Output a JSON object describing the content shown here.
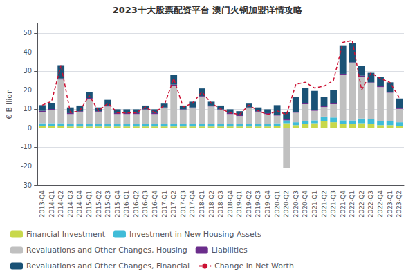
{
  "chart_data": {
    "type": "bar",
    "stacked": true,
    "ylabel": "€ Billion",
    "annotations": [
      "2023十大股票配资平台 澳门火锅加盟详情攻略"
    ],
    "categories": [
      "2013-Q4",
      "2014-Q1",
      "2014-Q2",
      "2014-Q3",
      "2014-Q4",
      "2015-Q1",
      "2015-Q2",
      "2015-Q3",
      "2015-Q4",
      "2016-Q1",
      "2016-Q2",
      "2016-Q3",
      "2016-Q4",
      "2017-Q1",
      "2017-Q2",
      "2017-Q3",
      "2017-Q4",
      "2018-Q1",
      "2018-Q2",
      "2018-Q3",
      "2018-Q4",
      "2019-Q1",
      "2019-Q2",
      "2019-Q3",
      "2019-Q4",
      "2020-Q1",
      "2020-Q2",
      "2020-Q3",
      "2020-Q4",
      "2021-Q1",
      "2021-Q2",
      "2021-Q3",
      "2021-Q4",
      "2022-Q1",
      "2022-Q2",
      "2022-Q3",
      "2022-Q4",
      "2023-Q1",
      "2023-Q2"
    ],
    "series": [
      {
        "name": "Financial Investment",
        "color": "#c8d84b",
        "values": [
          1.0,
          1.0,
          1.0,
          0.8,
          0.8,
          0.8,
          0.8,
          0.8,
          0.8,
          0.8,
          0.8,
          0.8,
          0.8,
          0.8,
          0.8,
          0.8,
          0.8,
          0.8,
          0.8,
          0.8,
          0.8,
          0.8,
          0.8,
          0.8,
          0.8,
          1.0,
          2.5,
          1.5,
          2.0,
          2.5,
          3.5,
          3.0,
          2.0,
          2.0,
          2.5,
          2.0,
          1.5,
          1.5,
          1.0
        ]
      },
      {
        "name": "Investment in New Housing Assets",
        "color": "#40bcd8",
        "values": [
          1.5,
          1.5,
          1.5,
          1.5,
          1.5,
          1.5,
          1.5,
          1.5,
          1.5,
          1.5,
          1.5,
          1.5,
          1.5,
          1.5,
          1.5,
          1.5,
          1.5,
          1.5,
          1.5,
          1.5,
          1.5,
          1.5,
          1.5,
          1.5,
          1.5,
          1.5,
          1.5,
          1.5,
          1.5,
          1.5,
          2.5,
          2.5,
          2.0,
          2.0,
          2.5,
          2.5,
          2.0,
          2.0,
          2.0
        ]
      },
      {
        "name": "Revaluations and Other Changes, Housing",
        "color": "#c0c0c0",
        "values": [
          6.0,
          7.0,
          23.0,
          5.0,
          6.0,
          13.0,
          6.0,
          9.0,
          5.0,
          5.0,
          5.0,
          7.0,
          5.0,
          8.0,
          20.0,
          7.0,
          8.0,
          14.0,
          9.0,
          7.0,
          5.0,
          4.0,
          8.0,
          6.0,
          5.0,
          4.0,
          -21.0,
          5.0,
          9.0,
          5.0,
          5.0,
          7.0,
          24.0,
          30.0,
          22.0,
          19.0,
          18.0,
          15.0,
          7.0
        ]
      },
      {
        "name": "Liabilities",
        "color": "#6b2d8b",
        "values": [
          0.5,
          0.5,
          0.5,
          0.5,
          0.5,
          0.5,
          0.5,
          0.5,
          0.5,
          0.5,
          0.5,
          0.5,
          0.5,
          0.5,
          0.5,
          0.5,
          0.5,
          0.5,
          0.5,
          0.5,
          0.5,
          0.5,
          0.5,
          0.5,
          0.5,
          0.5,
          0.5,
          0.5,
          0.5,
          0.5,
          0.5,
          0.5,
          0.5,
          0.5,
          0.5,
          0.5,
          0.5,
          0.5,
          0.5
        ]
      },
      {
        "name": "Revaluations and Other Changes, Financial",
        "color": "#1a5276",
        "values": [
          3.0,
          3.0,
          7.0,
          3.0,
          3.0,
          3.0,
          2.0,
          3.0,
          2.0,
          2.0,
          2.0,
          2.0,
          2.0,
          2.0,
          5.0,
          2.0,
          3.0,
          4.0,
          2.0,
          2.0,
          2.0,
          2.0,
          2.0,
          2.0,
          2.0,
          5.0,
          4.0,
          8.0,
          8.0,
          10.0,
          5.0,
          7.0,
          15.0,
          10.0,
          5.0,
          5.0,
          5.0,
          5.0,
          5.0
        ]
      },
      {
        "name": "Change in Net Worth",
        "type": "line",
        "line_style": "dashed",
        "color": "#cc1133",
        "values": [
          12.0,
          14.0,
          33.0,
          8.0,
          9.0,
          17.0,
          9.0,
          13.0,
          8.0,
          8.0,
          8.0,
          11.0,
          8.0,
          12.0,
          26.0,
          11.0,
          13.0,
          19.0,
          13.0,
          10.0,
          8.0,
          7.0,
          12.0,
          9.0,
          7.0,
          9.0,
          7.0,
          23.0,
          24.0,
          21.0,
          22.0,
          25.0,
          45.0,
          46.0,
          20.0,
          29.0,
          26.0,
          24.0,
          16.0
        ]
      }
    ],
    "ylim": [
      -30,
      55
    ],
    "yticks": [
      -30,
      -20,
      -10,
      0,
      10,
      20,
      30,
      40,
      50
    ],
    "grid": true,
    "legend": "bottom"
  }
}
